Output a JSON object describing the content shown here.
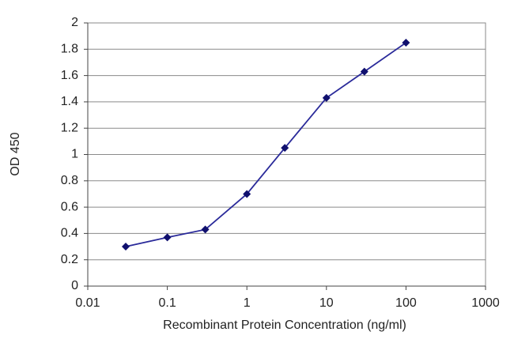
{
  "chart_data": {
    "type": "line",
    "xlabel": "Recombinant Protein Concentration (ng/ml)",
    "ylabel": "OD 450",
    "x": [
      0.03,
      0.1,
      0.3,
      1,
      3,
      10,
      30,
      100
    ],
    "series": [
      {
        "color": "#2a2a9a",
        "values": [
          0.3,
          0.37,
          0.43,
          0.7,
          1.05,
          1.43,
          1.63,
          1.85
        ]
      }
    ],
    "xscale": "log",
    "xlim": [
      0.01,
      1000
    ],
    "xticks": [
      0.01,
      0.1,
      1,
      10,
      100,
      1000
    ],
    "ylim": [
      0,
      2
    ],
    "yticks": [
      0,
      0.2,
      0.4,
      0.6,
      0.8,
      1,
      1.2,
      1.4,
      1.6,
      1.8,
      2
    ],
    "grid": true
  }
}
